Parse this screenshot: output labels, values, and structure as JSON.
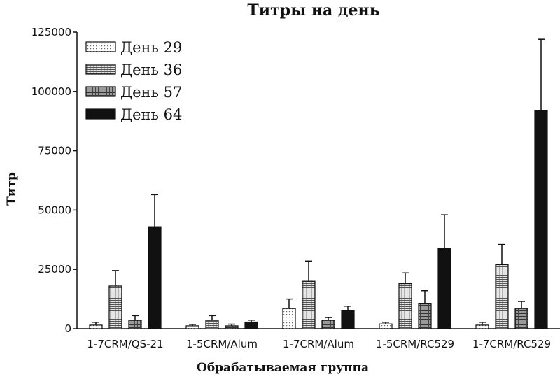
{
  "chart_data": {
    "type": "bar",
    "title": "Титры на день",
    "xlabel": "Обрабатываемая группа",
    "ylabel": "Титр",
    "ylim": [
      0,
      125000
    ],
    "yticks": [
      0,
      25000,
      50000,
      75000,
      100000,
      125000
    ],
    "categories": [
      "1-7CRM/QS-21",
      "1-5CRM/Alum",
      "1-7CRM/Alum",
      "1-5CRM/RC529",
      "1-7CRM/RC529"
    ],
    "legend_position": "top-left",
    "grid": false,
    "series": [
      {
        "name": "День 29",
        "pattern": "dots",
        "values": [
          1500,
          1200,
          8500,
          2000,
          1500
        ],
        "errors": [
          1200,
          600,
          4000,
          700,
          1200
        ]
      },
      {
        "name": "День 36",
        "pattern": "hatch",
        "values": [
          18000,
          3500,
          20000,
          19000,
          27000
        ],
        "errors": [
          6500,
          2000,
          8500,
          4500,
          8500
        ]
      },
      {
        "name": "День 57",
        "pattern": "crosshatch",
        "values": [
          3500,
          1200,
          3500,
          10500,
          8500
        ],
        "errors": [
          2000,
          700,
          1200,
          5500,
          3000
        ]
      },
      {
        "name": "День 64",
        "pattern": "solid",
        "values": [
          43000,
          2800,
          7500,
          34000,
          92000
        ],
        "errors": [
          13500,
          800,
          2000,
          14000,
          30000
        ]
      }
    ]
  }
}
